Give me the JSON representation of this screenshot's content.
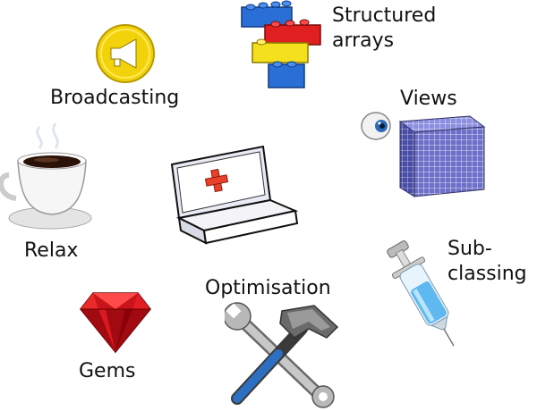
{
  "labels": {
    "structured_line1": "Structured",
    "structured_line2": "arrays",
    "broadcasting": "Broadcasting",
    "views": "Views",
    "relax": "Relax",
    "sub_line1": "Sub-",
    "sub_line2": "classing",
    "optimisation": "Optimisation",
    "gems": "Gems"
  },
  "icons": {
    "bricks": "lego-bricks-icon",
    "megaphone": "megaphone-icon",
    "eye": "eye-icon",
    "cube": "grid-cube-icon",
    "coffee": "coffee-cup-icon",
    "firstaid": "first-aid-kit-icon",
    "syringe": "syringe-icon",
    "tools": "wrench-hammer-icon",
    "gem": "ruby-gem-icon"
  },
  "colors": {
    "brick_blue": "#2a6fd6",
    "brick_red": "#e02020",
    "brick_yellow": "#f4e01c",
    "megaphone_yellow": "#f2d20a",
    "cross_red": "#e8402a",
    "ruby": "#c8141a",
    "syringe_fluid": "#5fb8f0",
    "cube_fill": "#6d70c8"
  }
}
